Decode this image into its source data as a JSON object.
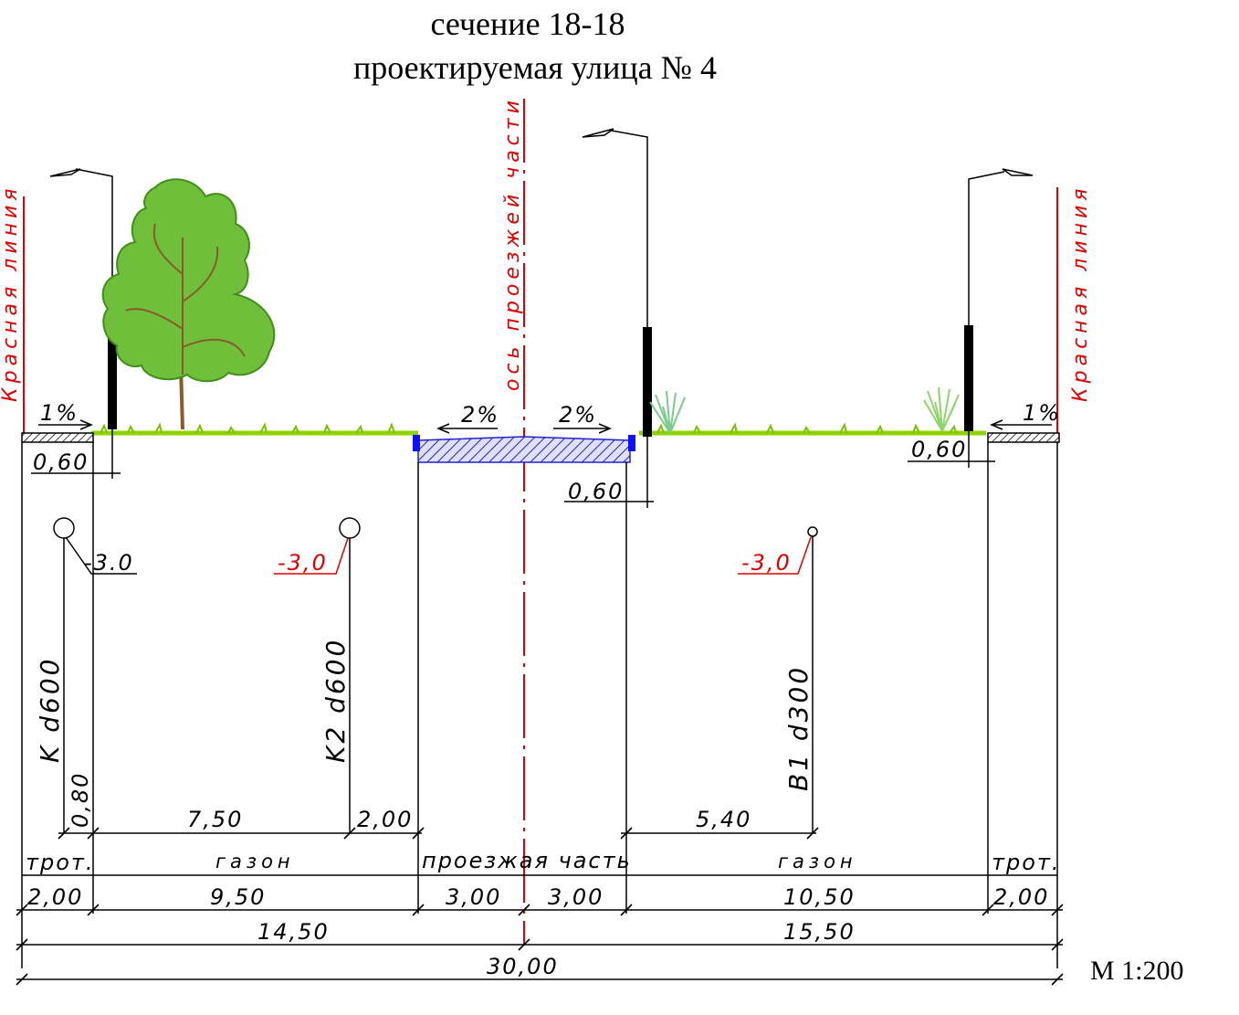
{
  "title": {
    "line1": "сечение 18-18",
    "line2": "проектируемая улица № 4"
  },
  "scale_label": "М 1:200",
  "labels": {
    "red_line_left": "Красная линия",
    "red_line_right": "Красная линия",
    "axis": "ось проезжей части"
  },
  "slopes": {
    "left_sidewalk": "1%",
    "road_left": "2%",
    "road_right": "2%",
    "right_sidewalk": "1%"
  },
  "offsets": {
    "left": "0,60",
    "center": "0,60",
    "right": "0,60"
  },
  "pipes": [
    {
      "name": "K d600",
      "depth": "-3.0",
      "depth_color": "#000000"
    },
    {
      "name": "K2 d600",
      "depth": "-3,0",
      "depth_color": "#e00000"
    },
    {
      "name": "B1 d300",
      "depth": "-3,0",
      "depth_color": "#e00000"
    }
  ],
  "pipe_dimensions": {
    "d1": "0,80",
    "d2": "7,50",
    "d3": "2,00",
    "d4": "5,40"
  },
  "zones": {
    "z1": "трот.",
    "z2": "газон",
    "z3": "проезжая часть",
    "z4": "газон",
    "z5": "трот."
  },
  "widths": {
    "w1": "2,00",
    "w2": "9,50",
    "w3": "3,00",
    "w4": "3,00",
    "w5": "10,50",
    "w6": "2,00"
  },
  "half_widths": {
    "left": "14,50",
    "right": "15,50"
  },
  "total_width": "30,00",
  "colors": {
    "red_line": "#e00000",
    "grass": "#8fd400",
    "tree": "#6fbf3a",
    "road_hatch": "#2222cc",
    "curb": "#1010ff"
  }
}
